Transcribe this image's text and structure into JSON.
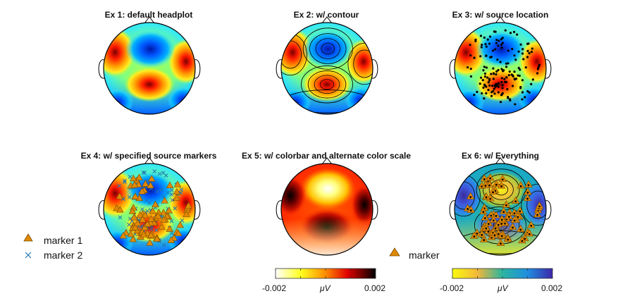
{
  "chart_data": [
    {
      "type": "heatmap",
      "title": "Ex 1: default headplot",
      "colormap": "jet",
      "contours": false,
      "sources": "none"
    },
    {
      "type": "heatmap",
      "title": "Ex 2: w/ contour",
      "colormap": "jet",
      "contours": true,
      "sources": "none"
    },
    {
      "type": "heatmap",
      "title": "Ex 3: w/ source location",
      "colormap": "jet",
      "contours": false,
      "sources": "dots"
    },
    {
      "type": "heatmap",
      "title": "Ex 4: w/ specified source markers",
      "colormap": "jet",
      "contours": false,
      "sources": "markers",
      "legend": [
        {
          "label": "marker 1",
          "symbol": "triangle",
          "color": "#e08a00"
        },
        {
          "label": "marker 2",
          "symbol": "x",
          "color": "#1f77b4"
        }
      ]
    },
    {
      "type": "heatmap",
      "title": "Ex 5: w/ colorbar and alternate color scale",
      "colormap": "hot-reversed",
      "contours": false,
      "sources": "none",
      "colorbar": {
        "min": "-0.002",
        "max": "0.002",
        "unit": "μV"
      }
    },
    {
      "type": "heatmap",
      "title": "Ex 6: w/ Everything",
      "colormap": "parula-reversed",
      "contours": true,
      "sources": "markers",
      "legend": [
        {
          "label": "marker",
          "symbol": "triangle",
          "color": "#e08a00"
        }
      ],
      "colorbar": {
        "min": "-0.002",
        "max": "0.002",
        "unit": "μV"
      }
    }
  ],
  "colors": {
    "marker_fill": "#e08a00",
    "marker_x": "#1f77b4",
    "outline": "#000000"
  }
}
